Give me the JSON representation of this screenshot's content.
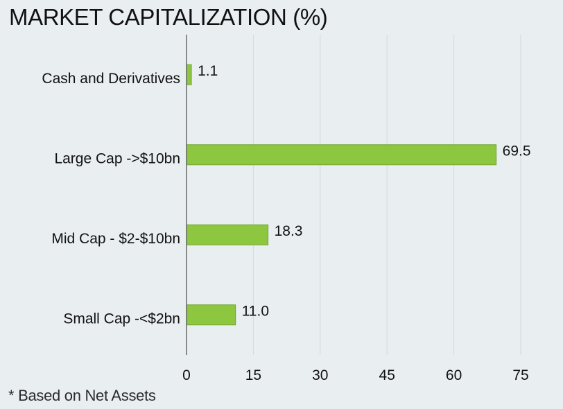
{
  "chart_data": {
    "type": "bar",
    "orientation": "horizontal",
    "title": "MARKET CAPITALIZATION (%)",
    "categories": [
      "Cash and Derivatives",
      "Large Cap ->$10bn",
      "Mid Cap - $2-$10bn",
      "Small Cap -<$2bn"
    ],
    "values": [
      1.1,
      69.5,
      18.3,
      11.0
    ],
    "value_labels": [
      "1.1",
      "69.5",
      "18.3",
      "11.0"
    ],
    "xlim": [
      0,
      75
    ],
    "xticks": [
      0,
      15,
      30,
      45,
      60,
      75
    ],
    "grid": "vertical",
    "xlabel": "",
    "ylabel": "",
    "bar_color": "#8dc63f",
    "bar_edge_color": "#6fa52c",
    "grid_color": "#d4d9dc",
    "background": "#e9eef1"
  },
  "footnote": "* Based on Net Assets"
}
